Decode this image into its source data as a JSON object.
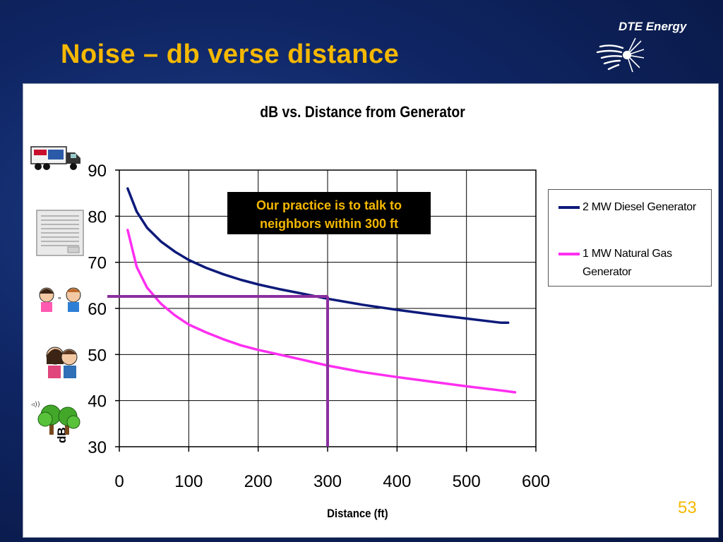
{
  "slide": {
    "title": "Noise – db verse distance",
    "brand": "DTE Energy",
    "page_number": "53"
  },
  "annotation": {
    "line1": "Our practice is to talk to",
    "line2": "neighbors within 300 ft"
  },
  "icons": [
    "truck-icon",
    "air-conditioner-icon",
    "conversation-icon",
    "whisper-icon",
    "rustling-trees-icon",
    "dte-logo-icon"
  ],
  "colors": {
    "title": "#f5b800",
    "diesel": "#0d1a7a",
    "natural_gas": "#ff2ef0",
    "threshold": "#8b2f9f"
  },
  "chart_data": {
    "type": "line",
    "title": "dB vs. Distance from Generator",
    "xlabel": "Distance (ft)",
    "ylabel": "dB",
    "xlim": [
      0,
      600
    ],
    "ylim": [
      30,
      90
    ],
    "xticks": [
      0,
      100,
      200,
      300,
      400,
      500,
      600
    ],
    "yticks": [
      30,
      40,
      50,
      60,
      70,
      80,
      90
    ],
    "grid": true,
    "legend_position": "right",
    "series": [
      {
        "name": "2 MW Diesel Generator",
        "x": [
          12,
          25,
          40,
          60,
          80,
          100,
          125,
          150,
          175,
          200,
          230,
          260,
          300,
          350,
          400,
          450,
          500,
          550,
          560
        ],
        "y": [
          86,
          81,
          77.5,
          74.5,
          72.3,
          70.5,
          68.8,
          67.4,
          66.2,
          65.2,
          64.2,
          63.3,
          62.1,
          60.8,
          59.7,
          58.7,
          57.8,
          56.9,
          56.9
        ]
      },
      {
        "name": "1 MW Natural Gas Generator",
        "x": [
          12,
          25,
          40,
          60,
          80,
          100,
          125,
          150,
          175,
          200,
          230,
          260,
          300,
          350,
          400,
          450,
          500,
          550,
          570
        ],
        "y": [
          77,
          69,
          64.5,
          61,
          58.5,
          56.5,
          54.8,
          53.3,
          52,
          51,
          50,
          49,
          47.6,
          46.2,
          45.1,
          44.1,
          43.1,
          42.2,
          41.8
        ]
      }
    ],
    "threshold": {
      "x": 300,
      "y": 62.6
    }
  }
}
